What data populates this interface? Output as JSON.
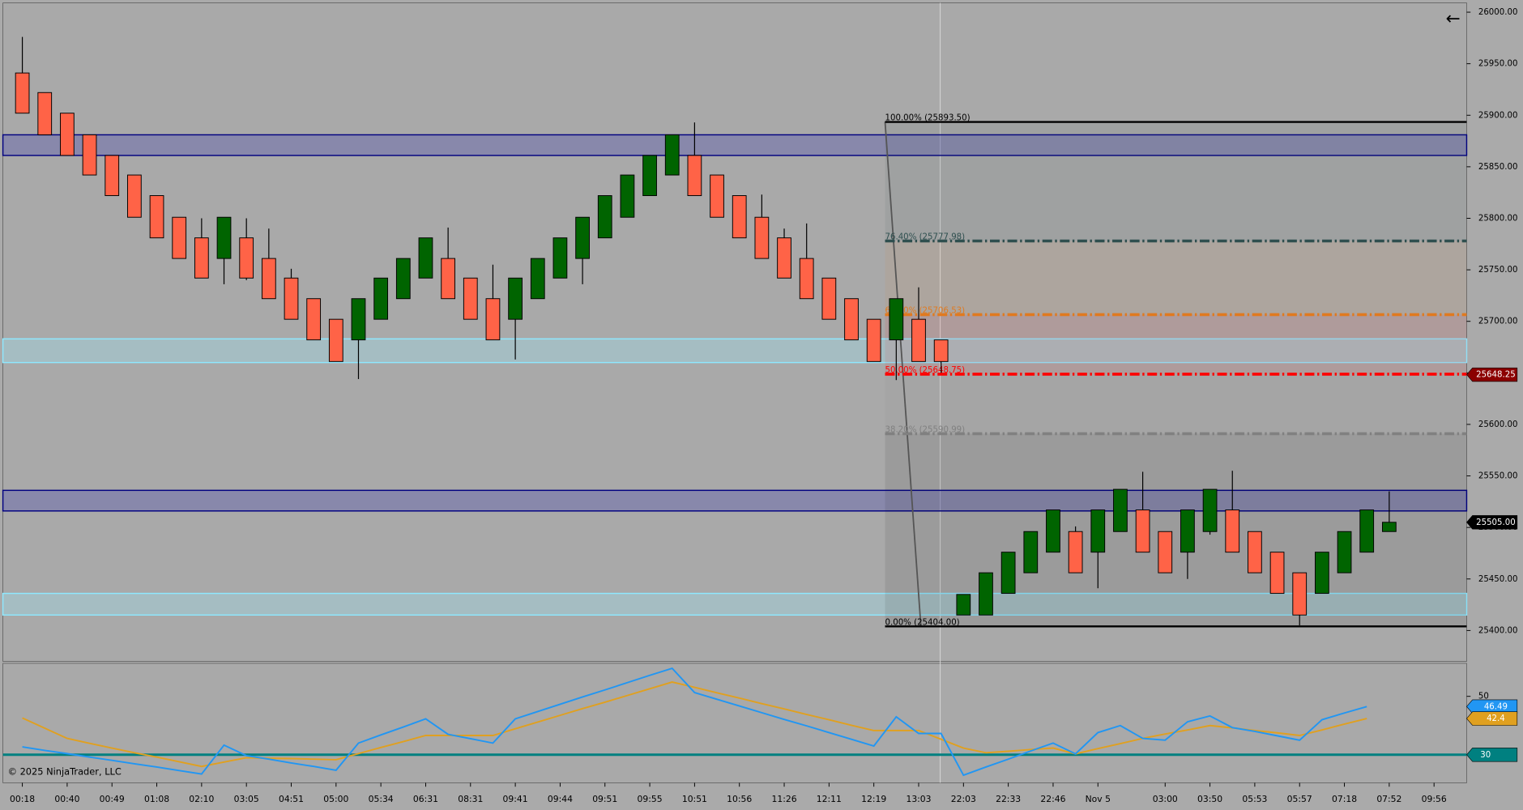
{
  "chart_data": {
    "type": "candlestick",
    "categories": [
      "00:18",
      null,
      "00:40",
      null,
      "00:49",
      null,
      "01:08",
      null,
      "02:10",
      null,
      "03:05",
      null,
      "04:51",
      null,
      "05:00",
      null,
      "05:34",
      null,
      "06:31",
      null,
      "08:31",
      null,
      "09:41",
      null,
      "09:44",
      null,
      "09:51",
      null,
      "09:55",
      null,
      "10:51",
      null,
      "10:56",
      null,
      "11:26",
      null,
      "12:11",
      null,
      "12:19",
      null,
      "13:03",
      null,
      "22:03",
      null,
      "22:33",
      null,
      "22:46",
      null,
      "Nov 5",
      null,
      null,
      "03:00",
      null,
      "03:50",
      null,
      "05:53",
      null,
      "05:57",
      null,
      "07:18",
      null,
      "07:52",
      null,
      "09:56"
    ],
    "open": [
      25941,
      25922,
      25902,
      25881,
      25861,
      25842,
      25822,
      25801,
      25781,
      25761,
      25781,
      25761,
      25742,
      25722,
      25702,
      25682,
      25702,
      25722,
      25742,
      25761,
      25742,
      25722,
      25702,
      25722,
      25742,
      25761,
      25781,
      25801,
      25822,
      25842,
      25861,
      25842,
      25822,
      25801,
      25781,
      25761,
      25742,
      25722,
      25702,
      25682,
      25702,
      25682,
      25415,
      25415,
      25436,
      25456,
      25476,
      25496,
      25476,
      25496,
      25517,
      25496,
      25476,
      25496,
      25517,
      25496,
      25476,
      25456,
      25436,
      25456,
      25476,
      25496,
      null,
      null
    ],
    "high": [
      25976,
      25922,
      25902,
      25881,
      25861,
      25842,
      25822,
      25801,
      25800,
      25801,
      25800,
      25790,
      25751,
      25722,
      25702,
      25722,
      25742,
      25761,
      25781,
      25791,
      25742,
      25755,
      25742,
      25761,
      25781,
      25801,
      25822,
      25842,
      25861,
      25881,
      25893,
      25842,
      25822,
      25823,
      25790,
      25795,
      25742,
      25722,
      25702,
      25722,
      25733,
      25682,
      25435,
      25456,
      25476,
      25496,
      25517,
      25501,
      25517,
      25537,
      25554,
      25496,
      25517,
      25537,
      25555,
      25496,
      25476,
      25456,
      25476,
      25496,
      25517,
      25535,
      null,
      null
    ],
    "low": [
      25902,
      25881,
      25861,
      25842,
      25822,
      25801,
      25781,
      25761,
      25742,
      25736,
      25740,
      25722,
      25702,
      25682,
      25661,
      25644,
      25702,
      25722,
      25742,
      25722,
      25702,
      25682,
      25663,
      25722,
      25742,
      25736,
      25781,
      25801,
      25822,
      25842,
      25822,
      25801,
      25781,
      25761,
      25742,
      25722,
      25702,
      25682,
      25661,
      25643,
      25661,
      25650,
      25415,
      25415,
      25436,
      25456,
      25476,
      25456,
      25441,
      25496,
      25476,
      25456,
      25450,
      25493,
      25476,
      25456,
      25436,
      25405,
      25436,
      25456,
      25476,
      25496,
      null,
      null
    ],
    "close": [
      25902,
      25881,
      25861,
      25842,
      25822,
      25801,
      25781,
      25761,
      25742,
      25801,
      25742,
      25722,
      25702,
      25682,
      25661,
      25722,
      25742,
      25761,
      25781,
      25722,
      25702,
      25682,
      25742,
      25761,
      25781,
      25801,
      25822,
      25842,
      25861,
      25881,
      25822,
      25801,
      25781,
      25761,
      25742,
      25722,
      25702,
      25682,
      25661,
      25722,
      25661,
      25661,
      25435,
      25456,
      25476,
      25496,
      25517,
      25456,
      25517,
      25537,
      25476,
      25456,
      25517,
      25537,
      25476,
      25456,
      25436,
      25415,
      25476,
      25496,
      25517,
      25505,
      null,
      null
    ],
    "up_color": "#006400",
    "down_color": "#ff6347",
    "ylim": [
      25370,
      26009
    ],
    "yticks": [
      {
        "value": 25400,
        "label": "25400.00"
      },
      {
        "value": 25450,
        "label": "25450.00"
      },
      {
        "value": 25500,
        "label": "25500.00"
      },
      {
        "value": 25550,
        "label": "25550.00"
      },
      {
        "value": 25600,
        "label": "25600.00"
      },
      {
        "value": 25650,
        "label": "25650.00"
      },
      {
        "value": 25700,
        "label": "25700.00"
      },
      {
        "value": 25750,
        "label": "25750.00"
      },
      {
        "value": 25800,
        "label": "25800.00"
      },
      {
        "value": 25850,
        "label": "25850.00"
      },
      {
        "value": 25900,
        "label": "25900.00"
      },
      {
        "value": 25950,
        "label": "25950.00"
      },
      {
        "value": 26000,
        "label": "26000.00"
      }
    ],
    "zones": [
      {
        "top": 25881,
        "bottom": 25861,
        "color": "#4a4ab0"
      },
      {
        "top": 25683,
        "bottom": 25660,
        "color": "#9fe3f2"
      },
      {
        "top": 25536,
        "bottom": 25516,
        "color": "#4a4ab0"
      },
      {
        "top": 25436,
        "bottom": 25415,
        "color": "#9fe3f2"
      }
    ],
    "fib_levels": [
      {
        "label": "100.00% (25893.50)",
        "value": 25893.5,
        "color": "#000000"
      },
      {
        "label": "76.40% (25777.98)",
        "value": 25777.98,
        "color": "#2f4f4f"
      },
      {
        "label": "61.80% (25706.53)",
        "value": 25706.53,
        "color": "#e07a20"
      },
      {
        "label": "50.00% (25648.75)",
        "value": 25648.75,
        "color": "#ff0000"
      },
      {
        "label": "38.20% (25590.99)",
        "value": 25590.99,
        "color": "#808080"
      },
      {
        "label": "0.00% (25404.00)",
        "value": 25404,
        "color": "#000000"
      }
    ],
    "price_markers": [
      {
        "value": 25648.25,
        "label": "25648.25",
        "color": "#8b0000"
      },
      {
        "value": 25505,
        "label": "25505.00",
        "color": "#000000"
      }
    ],
    "oscillator": {
      "ylim": [
        20.4,
        61.3
      ],
      "yticks": [
        50
      ],
      "level": 30,
      "level_color": "#008080",
      "series": [
        {
          "color": "#2196f3",
          "values": [
            32.7,
            31.5,
            30.4,
            29.2,
            28.1,
            26.9,
            25.8,
            24.6,
            23.4,
            33.3,
            29.7,
            28.5,
            27.2,
            26.0,
            24.7,
            34.0,
            36.8,
            39.5,
            42.3,
            37.0,
            35.5,
            34.0,
            42.3,
            44.8,
            47.3,
            49.8,
            52.2,
            54.7,
            57.2,
            59.6,
            51.3,
            49.0,
            46.7,
            44.4,
            42.1,
            39.9,
            37.6,
            35.3,
            33.0,
            43.0,
            37.3,
            37.3,
            23.0,
            25.8,
            28.5,
            31.3,
            34.0,
            30.3,
            37.6,
            40.0,
            35.6,
            35.0,
            41.3,
            43.3,
            39.3,
            38.0,
            36.5,
            35.0,
            42.0,
            44.3,
            46.49,
            null
          ],
          "value_label": "46.49"
        },
        {
          "color": "#e0a020",
          "values": [
            42.6,
            39.1,
            35.6,
            33.9,
            32.3,
            30.7,
            29.2,
            27.6,
            26.0,
            27.5,
            29.0,
            28.8,
            28.7,
            28.5,
            28.3,
            30.4,
            32.5,
            34.5,
            36.6,
            36.6,
            36.6,
            36.6,
            38.9,
            41.2,
            43.5,
            45.8,
            48.0,
            50.3,
            52.6,
            54.9,
            53.1,
            51.2,
            49.4,
            47.5,
            45.7,
            43.8,
            42.0,
            40.1,
            38.3,
            38.3,
            38.3,
            35.3,
            32.3,
            30.7,
            31.2,
            31.8,
            32.3,
            30.3,
            32.1,
            33.8,
            35.6,
            37.1,
            38.5,
            40.0,
            39.2,
            38.3,
            37.5,
            36.6,
            38.5,
            40.5,
            42.4,
            null
          ],
          "value_label": "42.4"
        }
      ]
    },
    "copyright": "© 2025 NinjaTrader, LLC",
    "back_icon": "←"
  }
}
